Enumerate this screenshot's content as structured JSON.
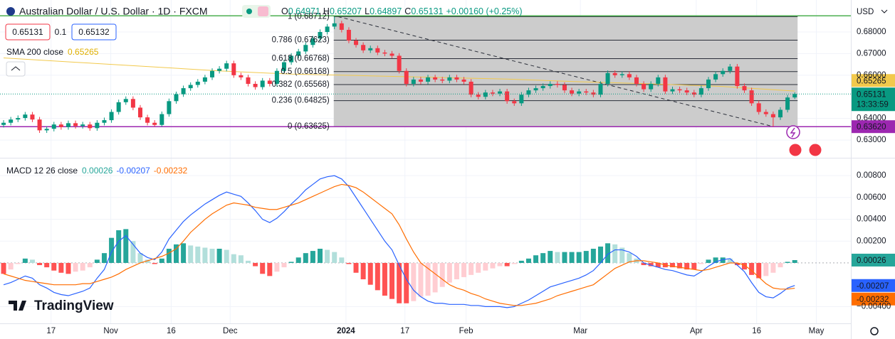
{
  "header": {
    "symbol": "Australian Dollar / U.S. Dollar · 1D · FXCM",
    "o": "O",
    "h": "H",
    "l": "L",
    "c": "C",
    "change": "+0.00160 (+0.25%)"
  },
  "trade": {
    "sell": 0.65131,
    "spread": 0.1,
    "buy": 0.65132
  },
  "currency": "USD",
  "countdown": "13:33:59",
  "logo": "TradingView",
  "x_axis": {
    "xlim": [
      -0.5,
      117.8
    ],
    "xticks": [
      {
        "value": 6.6,
        "label": "17"
      },
      {
        "value": 14.9,
        "label": "Nov"
      },
      {
        "value": 23.3,
        "label": "16"
      },
      {
        "value": 31.5,
        "label": "Dec"
      },
      {
        "value": 47.6,
        "label": "2024"
      },
      {
        "value": 55.8,
        "label": "17"
      },
      {
        "value": 64.3,
        "label": "Feb"
      },
      {
        "value": 80.2,
        "label": "Mar"
      },
      {
        "value": 96.3,
        "label": "Apr"
      },
      {
        "value": 104.7,
        "label": "16"
      },
      {
        "value": 113,
        "label": "May"
      }
    ]
  },
  "chart_data": [
    {
      "type": "candlestick",
      "up_color": "#089981",
      "down_color": "#f23645",
      "open": [
        0.637,
        0.638,
        0.6395,
        0.6402,
        0.6418,
        0.6395,
        0.6345,
        0.6352,
        0.6372,
        0.636,
        0.6378,
        0.6365,
        0.6372,
        0.6355,
        0.638,
        0.6392,
        0.643,
        0.6475,
        0.649,
        0.645,
        0.6405,
        0.638,
        0.637,
        0.642,
        0.648,
        0.6512,
        0.654,
        0.6555,
        0.657,
        0.659,
        0.662,
        0.663,
        0.6655,
        0.66,
        0.659,
        0.656,
        0.6545,
        0.6575,
        0.656,
        0.662,
        0.666,
        0.669,
        0.671,
        0.674,
        0.677,
        0.68,
        0.6825,
        0.684,
        0.681,
        0.676,
        0.674,
        0.6715,
        0.6725,
        0.6705,
        0.67,
        0.669,
        0.662,
        0.656,
        0.658,
        0.657,
        0.659,
        0.658,
        0.6575,
        0.659,
        0.658,
        0.657,
        0.651,
        0.65,
        0.652,
        0.6515,
        0.6525,
        0.648,
        0.647,
        0.651,
        0.653,
        0.654,
        0.655,
        0.656,
        0.6555,
        0.653,
        0.6515,
        0.6525,
        0.652,
        0.651,
        0.656,
        0.661,
        0.66,
        0.6605,
        0.659,
        0.656,
        0.6535,
        0.656,
        0.659,
        0.6525,
        0.6535,
        0.653,
        0.652,
        0.651,
        0.654,
        0.658,
        0.6605,
        0.662,
        0.664,
        0.655,
        0.653,
        0.647,
        0.643,
        0.642,
        0.6405,
        0.644,
        0.64971
      ],
      "high": [
        0.6392,
        0.6407,
        0.6414,
        0.643,
        0.643,
        0.6407,
        0.6364,
        0.6384,
        0.6384,
        0.639,
        0.639,
        0.6384,
        0.6384,
        0.6392,
        0.6404,
        0.6442,
        0.6487,
        0.6502,
        0.6502,
        0.6462,
        0.6417,
        0.6392,
        0.6432,
        0.6492,
        0.6524,
        0.6552,
        0.6567,
        0.6582,
        0.6602,
        0.6632,
        0.6642,
        0.6667,
        0.6667,
        0.6612,
        0.6602,
        0.6572,
        0.6587,
        0.6587,
        0.6632,
        0.6672,
        0.6702,
        0.6722,
        0.6752,
        0.6782,
        0.6812,
        0.6837,
        0.6871,
        0.6852,
        0.6822,
        0.6772,
        0.6752,
        0.6737,
        0.6737,
        0.6717,
        0.6712,
        0.6702,
        0.6632,
        0.6592,
        0.6592,
        0.6602,
        0.6602,
        0.6592,
        0.6602,
        0.6602,
        0.6592,
        0.6582,
        0.6522,
        0.6532,
        0.6532,
        0.6537,
        0.6537,
        0.6492,
        0.6522,
        0.6542,
        0.6552,
        0.6562,
        0.6572,
        0.6572,
        0.6567,
        0.6542,
        0.6537,
        0.6537,
        0.6532,
        0.6572,
        0.6622,
        0.6622,
        0.6617,
        0.6617,
        0.6602,
        0.6572,
        0.6572,
        0.6602,
        0.6602,
        0.6547,
        0.6547,
        0.6542,
        0.6532,
        0.6552,
        0.6592,
        0.6617,
        0.6632,
        0.6652,
        0.6652,
        0.6562,
        0.6542,
        0.6482,
        0.6442,
        0.6432,
        0.6452,
        0.6509,
        0.65207
      ],
      "low": [
        0.6358,
        0.6368,
        0.6383,
        0.639,
        0.6383,
        0.6333,
        0.6333,
        0.634,
        0.6348,
        0.6348,
        0.6353,
        0.6353,
        0.6343,
        0.6343,
        0.6368,
        0.638,
        0.6418,
        0.6463,
        0.6438,
        0.6393,
        0.6368,
        0.6362,
        0.6362,
        0.6408,
        0.6468,
        0.65,
        0.6528,
        0.6543,
        0.6558,
        0.6578,
        0.6608,
        0.6618,
        0.6588,
        0.6578,
        0.6548,
        0.6533,
        0.6533,
        0.6548,
        0.6548,
        0.6608,
        0.6648,
        0.6678,
        0.6698,
        0.6728,
        0.6758,
        0.6788,
        0.6813,
        0.6798,
        0.6748,
        0.6728,
        0.6703,
        0.6703,
        0.6693,
        0.6688,
        0.6678,
        0.6608,
        0.6548,
        0.6548,
        0.6558,
        0.6558,
        0.6568,
        0.6563,
        0.6563,
        0.6568,
        0.6558,
        0.6498,
        0.6488,
        0.6488,
        0.6503,
        0.6503,
        0.6468,
        0.6458,
        0.6458,
        0.6498,
        0.6518,
        0.6528,
        0.6538,
        0.6543,
        0.6518,
        0.6503,
        0.6503,
        0.6508,
        0.6498,
        0.6498,
        0.6548,
        0.6588,
        0.6588,
        0.6578,
        0.6548,
        0.6523,
        0.6523,
        0.6548,
        0.6513,
        0.6513,
        0.6518,
        0.6508,
        0.6498,
        0.6498,
        0.6528,
        0.6568,
        0.6593,
        0.6608,
        0.6538,
        0.6518,
        0.6458,
        0.6418,
        0.6408,
        0.6362,
        0.6393,
        0.6428,
        0.64897
      ],
      "close": [
        0.638,
        0.6395,
        0.6402,
        0.6418,
        0.6395,
        0.6345,
        0.6352,
        0.6372,
        0.636,
        0.6378,
        0.6365,
        0.6372,
        0.6355,
        0.638,
        0.6392,
        0.643,
        0.6475,
        0.649,
        0.645,
        0.6405,
        0.638,
        0.637,
        0.642,
        0.648,
        0.6512,
        0.654,
        0.6555,
        0.657,
        0.659,
        0.662,
        0.663,
        0.6655,
        0.66,
        0.659,
        0.656,
        0.6545,
        0.6575,
        0.656,
        0.662,
        0.666,
        0.669,
        0.671,
        0.674,
        0.677,
        0.68,
        0.6825,
        0.684,
        0.681,
        0.676,
        0.674,
        0.6715,
        0.6725,
        0.6705,
        0.67,
        0.669,
        0.662,
        0.656,
        0.658,
        0.657,
        0.659,
        0.658,
        0.6575,
        0.659,
        0.658,
        0.657,
        0.651,
        0.65,
        0.652,
        0.6515,
        0.6525,
        0.648,
        0.647,
        0.651,
        0.653,
        0.654,
        0.655,
        0.656,
        0.6555,
        0.653,
        0.6515,
        0.6525,
        0.652,
        0.651,
        0.656,
        0.661,
        0.66,
        0.6605,
        0.659,
        0.656,
        0.6535,
        0.656,
        0.659,
        0.6525,
        0.6535,
        0.653,
        0.652,
        0.651,
        0.654,
        0.658,
        0.6605,
        0.662,
        0.664,
        0.655,
        0.653,
        0.647,
        0.643,
        0.642,
        0.6405,
        0.644,
        0.6497,
        0.65131
      ],
      "ylim": [
        0.6218,
        0.6948
      ],
      "yticks": [
        {
          "value": 0.68,
          "label": "0.68000"
        },
        {
          "value": 0.67,
          "label": "0.67000"
        },
        {
          "value": 0.66,
          "label": "0.66000"
        },
        {
          "value": 0.64,
          "label": "0.64000"
        },
        {
          "value": 0.63,
          "label": "0.63000"
        }
      ],
      "sma": {
        "name": "SMA 200 close",
        "color": "#f2c94c",
        "x": [
          0,
          10,
          20,
          30,
          40,
          50,
          60,
          70,
          80,
          90,
          100,
          110
        ],
        "values": [
          0.668,
          0.666,
          0.664,
          0.662,
          0.6605,
          0.6598,
          0.659,
          0.6582,
          0.657,
          0.656,
          0.6548,
          0.65265
        ]
      },
      "fib": {
        "x": [
          46.5,
          107
        ],
        "levels": [
          {
            "value": 0.68712,
            "label": "1 (0.68712)"
          },
          {
            "value": 0.67623,
            "label": "0.786 (0.67623)"
          },
          {
            "value": 0.66768,
            "label": "0.618 (0.66768)"
          },
          {
            "value": 0.66168,
            "label": "0.5 (0.66168)"
          },
          {
            "value": 0.65568,
            "label": "0.382 (0.65568)"
          },
          {
            "value": 0.64825,
            "label": "0.236 (0.64825)"
          },
          {
            "value": 0.63625,
            "label": "0 (0.63625)"
          }
        ]
      },
      "hlines": [
        {
          "value": 0.6875,
          "color": "#4caf50"
        },
        {
          "value": 0.6362,
          "label": "0.63620",
          "color": "#9c27b0"
        }
      ]
    },
    {
      "type": "macd",
      "title": "MACD 12 26 close",
      "histogram": {
        "colors": [
          "#26a69a",
          "#b2dfdb",
          "#ff5252",
          "#ffcdd2"
        ],
        "values": [
          -0.001,
          -0.0006,
          -0.0001,
          0.0004,
          0.0003,
          -0.0002,
          -0.0004,
          -0.0007,
          -0.0009,
          -0.001,
          -0.0008,
          -0.0007,
          -0.0004,
          0.0003,
          0.0009,
          0.0023,
          0.003,
          0.0031,
          0.002,
          0.0009,
          0.0003,
          -0.0001,
          0.0004,
          0.0013,
          0.0017,
          0.0018,
          0.0016,
          0.0015,
          0.0014,
          0.0013,
          0.0013,
          0.0012,
          0.0008,
          0.0007,
          0.0002,
          -0.0003,
          -0.001,
          -0.0012,
          -0.0008,
          -0.0004,
          0.0001,
          0.0005,
          0.0009,
          0.0011,
          0.0013,
          0.0012,
          0.001,
          0.0005,
          -0.0001,
          -0.0009,
          -0.0015,
          -0.002,
          -0.0025,
          -0.003,
          -0.0033,
          -0.0037,
          -0.0037,
          -0.0035,
          -0.0031,
          -0.003,
          -0.0027,
          -0.0022,
          -0.0018,
          -0.0015,
          -0.0013,
          -0.0011,
          -0.0009,
          -0.0007,
          -0.0005,
          -0.0003,
          -0.0003,
          -0.0001,
          0.0002,
          0.0004,
          0.0007,
          0.0009,
          0.0011,
          0.001,
          0.001,
          0.001,
          0.001,
          0.0011,
          0.0013,
          0.0015,
          0.0018,
          0.0017,
          0.0014,
          0.0009,
          0.0004,
          -0.0002,
          -0.0003,
          -0.0004,
          -0.0004,
          -0.0004,
          -0.0005,
          -0.0006,
          -0.0006,
          -0.0001,
          0.0003,
          0.0005,
          0.0005,
          0.0004,
          -0.0002,
          -0.0006,
          -0.0011,
          -0.0014,
          -0.0012,
          -0.0009,
          -0.0004,
          0.0001,
          0.00026
        ]
      },
      "series": [
        {
          "color": "#2962ff",
          "values": [
            -0.002,
            -0.0018,
            -0.0015,
            -0.0012,
            -0.0014,
            -0.002,
            -0.0023,
            -0.0027,
            -0.0029,
            -0.003,
            -0.0028,
            -0.0026,
            -0.0023,
            -0.0014,
            -0.0006,
            0.001,
            0.002,
            0.0025,
            0.0017,
            0.0009,
            0.0005,
            0.0003,
            0.001,
            0.0022,
            0.003,
            0.0038,
            0.0044,
            0.0049,
            0.0054,
            0.0058,
            0.0062,
            0.0065,
            0.0063,
            0.0061,
            0.0055,
            0.0048,
            0.004,
            0.0037,
            0.0041,
            0.0047,
            0.0054,
            0.006,
            0.0067,
            0.0072,
            0.0077,
            0.0079,
            0.008,
            0.0077,
            0.007,
            0.006,
            0.005,
            0.004,
            0.003,
            0.002,
            0.0012,
            -0.0002,
            -0.0015,
            -0.0025,
            -0.0031,
            -0.0035,
            -0.0037,
            -0.0037,
            -0.0038,
            -0.0038,
            -0.0038,
            -0.0039,
            -0.0039,
            -0.004,
            -0.004,
            -0.004,
            -0.0041,
            -0.004,
            -0.0037,
            -0.0034,
            -0.003,
            -0.0026,
            -0.0022,
            -0.002,
            -0.0018,
            -0.0016,
            -0.0014,
            -0.0011,
            -0.0007,
            0,
            0.0008,
            0.0012,
            0.0012,
            0.001,
            0.0006,
            0,
            -0.0002,
            -0.0004,
            -0.0006,
            -0.0007,
            -0.0009,
            -0.0011,
            -0.0012,
            -0.0008,
            -0.0003,
            0.0001,
            0.0003,
            0.0004,
            -0.0002,
            -0.0008,
            -0.0018,
            -0.0027,
            -0.0031,
            -0.0032,
            -0.0028,
            -0.0023,
            -0.00207
          ]
        },
        {
          "color": "#ff6d00",
          "values": [
            -0.001,
            -0.0012,
            -0.0014,
            -0.0016,
            -0.0017,
            -0.0018,
            -0.0019,
            -0.002,
            -0.002,
            -0.002,
            -0.002,
            -0.0019,
            -0.0019,
            -0.0017,
            -0.0015,
            -0.0013,
            -0.001,
            -0.0006,
            -0.0003,
            0,
            0.0002,
            0.0004,
            0.0006,
            0.0009,
            0.0013,
            0.002,
            0.0028,
            0.0034,
            0.004,
            0.0045,
            0.0049,
            0.0053,
            0.0055,
            0.0054,
            0.0053,
            0.0051,
            0.005,
            0.0049,
            0.0049,
            0.0051,
            0.0053,
            0.0055,
            0.0058,
            0.0061,
            0.0064,
            0.0067,
            0.007,
            0.0072,
            0.0071,
            0.0069,
            0.0065,
            0.006,
            0.0055,
            0.005,
            0.0045,
            0.0035,
            0.0022,
            0.001,
            0,
            -0.0005,
            -0.001,
            -0.0015,
            -0.002,
            -0.0023,
            -0.0025,
            -0.0028,
            -0.003,
            -0.0033,
            -0.0035,
            -0.0037,
            -0.0038,
            -0.0039,
            -0.0039,
            -0.0038,
            -0.0037,
            -0.0035,
            -0.0033,
            -0.003,
            -0.0028,
            -0.0026,
            -0.0024,
            -0.0022,
            -0.002,
            -0.0015,
            -0.001,
            -0.0005,
            -0.0002,
            0.0001,
            0.0002,
            0.0002,
            0.0001,
            0,
            -0.0002,
            -0.0003,
            -0.0004,
            -0.0005,
            -0.0006,
            -0.0007,
            -0.0006,
            -0.0004,
            -0.0002,
            0,
            0,
            -0.0002,
            -0.0007,
            -0.0013,
            -0.0019,
            -0.0023,
            -0.0024,
            -0.0024,
            -0.00232
          ]
        }
      ],
      "ylim": [
        -0.00554,
        0.00951
      ],
      "yticks": [
        {
          "value": 0.008,
          "label": "0.00800"
        },
        {
          "value": 0.006,
          "label": "0.00600"
        },
        {
          "value": 0.004,
          "label": "0.00400"
        },
        {
          "value": 0.002,
          "label": "0.00200"
        },
        {
          "value": -0.004,
          "label": "−0.00400"
        }
      ]
    }
  ]
}
